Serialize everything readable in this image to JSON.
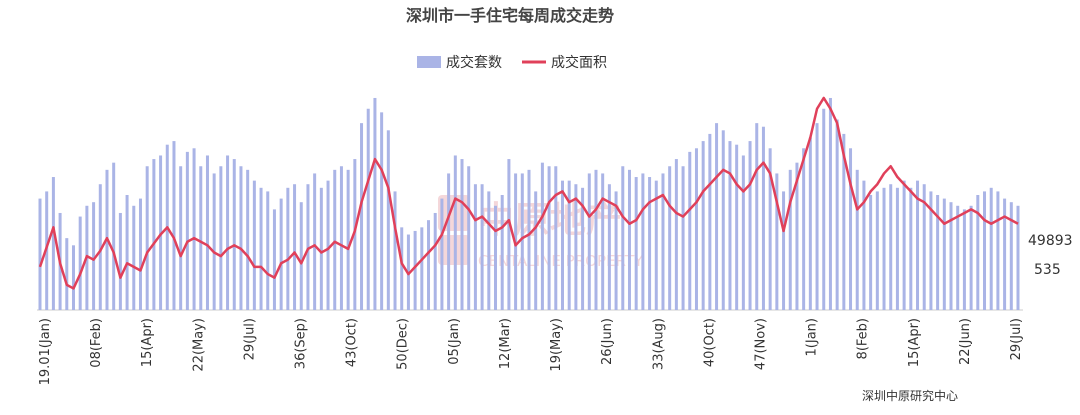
{
  "chart_data": {
    "type": "bar+line",
    "title": "深圳市一手住宅每周成交走势",
    "legend": [
      {
        "name": "成交套数",
        "type": "bar",
        "color": "#aab4e6"
      },
      {
        "name": "成交面积",
        "type": "line",
        "color": "#e0405a"
      }
    ],
    "legend_position": "top-center",
    "x_tick_labels": [
      "19.01(Jan)",
      "08(Feb)",
      "15(Apr)",
      "22(May)",
      "29(Jul)",
      "36(Sep)",
      "43(Oct)",
      "50(Dec)",
      "05(Jan)",
      "12(Mar)",
      "19(May)",
      "26(Jun)",
      "33(Aug)",
      "40(Oct)",
      "47(Nov)",
      "1(Jan)",
      "8(Feb)",
      "15(Apr)",
      "22(Jun)",
      "29(Jul)"
    ],
    "end_labels": {
      "line": "49893",
      "bar": "535"
    },
    "bars": [
      310,
      330,
      370,
      270,
      200,
      180,
      260,
      290,
      300,
      350,
      390,
      410,
      270,
      320,
      290,
      310,
      400,
      420,
      430,
      460,
      470,
      400,
      440,
      450,
      400,
      430,
      380,
      400,
      430,
      420,
      400,
      390,
      360,
      340,
      330,
      280,
      310,
      340,
      350,
      300,
      350,
      380,
      340,
      360,
      390,
      400,
      390,
      420,
      520,
      560,
      590,
      550,
      500,
      330,
      230,
      210,
      220,
      230,
      250,
      270,
      310,
      380,
      430,
      420,
      400,
      350,
      350,
      330,
      290,
      320,
      420,
      380,
      380,
      390,
      330,
      410,
      400,
      400,
      360,
      360,
      350,
      340,
      380,
      390,
      380,
      350,
      330,
      400,
      390,
      370,
      380,
      370,
      360,
      380,
      400,
      420,
      400,
      440,
      450,
      470,
      490,
      520,
      500,
      470,
      460,
      430,
      470,
      520,
      510,
      450,
      380,
      330,
      390,
      410,
      450,
      480,
      520,
      560,
      590,
      530,
      490,
      450,
      390,
      360,
      320,
      330,
      340,
      350,
      340,
      360,
      340,
      360,
      350,
      330,
      320,
      310,
      300,
      290,
      280,
      290,
      320,
      330,
      340,
      330,
      310,
      300,
      290
    ],
    "line": [
      120,
      175,
      230,
      130,
      70,
      60,
      100,
      150,
      140,
      165,
      200,
      160,
      90,
      130,
      120,
      110,
      160,
      185,
      210,
      230,
      200,
      150,
      190,
      200,
      190,
      180,
      160,
      150,
      170,
      180,
      170,
      150,
      120,
      120,
      100,
      90,
      130,
      140,
      160,
      130,
      170,
      180,
      160,
      170,
      190,
      180,
      170,
      220,
      300,
      360,
      420,
      390,
      340,
      230,
      130,
      100,
      120,
      140,
      160,
      180,
      210,
      260,
      310,
      300,
      280,
      250,
      260,
      240,
      220,
      230,
      250,
      180,
      200,
      210,
      230,
      260,
      300,
      320,
      330,
      300,
      310,
      290,
      260,
      280,
      310,
      300,
      290,
      260,
      240,
      250,
      280,
      300,
      310,
      320,
      290,
      270,
      260,
      280,
      300,
      330,
      350,
      370,
      390,
      380,
      350,
      330,
      350,
      390,
      410,
      380,
      300,
      220,
      300,
      360,
      420,
      480,
      560,
      590,
      560,
      520,
      430,
      350,
      280,
      300,
      330,
      350,
      380,
      400,
      370,
      350,
      330,
      310,
      300,
      280,
      260,
      240,
      250,
      260,
      270,
      280,
      270,
      250,
      240,
      250,
      260,
      250,
      240
    ]
  },
  "source": "深圳中原研究中心",
  "watermark": {
    "brand": "中原地产",
    "sub": "CENTALINE PROPERTY"
  }
}
